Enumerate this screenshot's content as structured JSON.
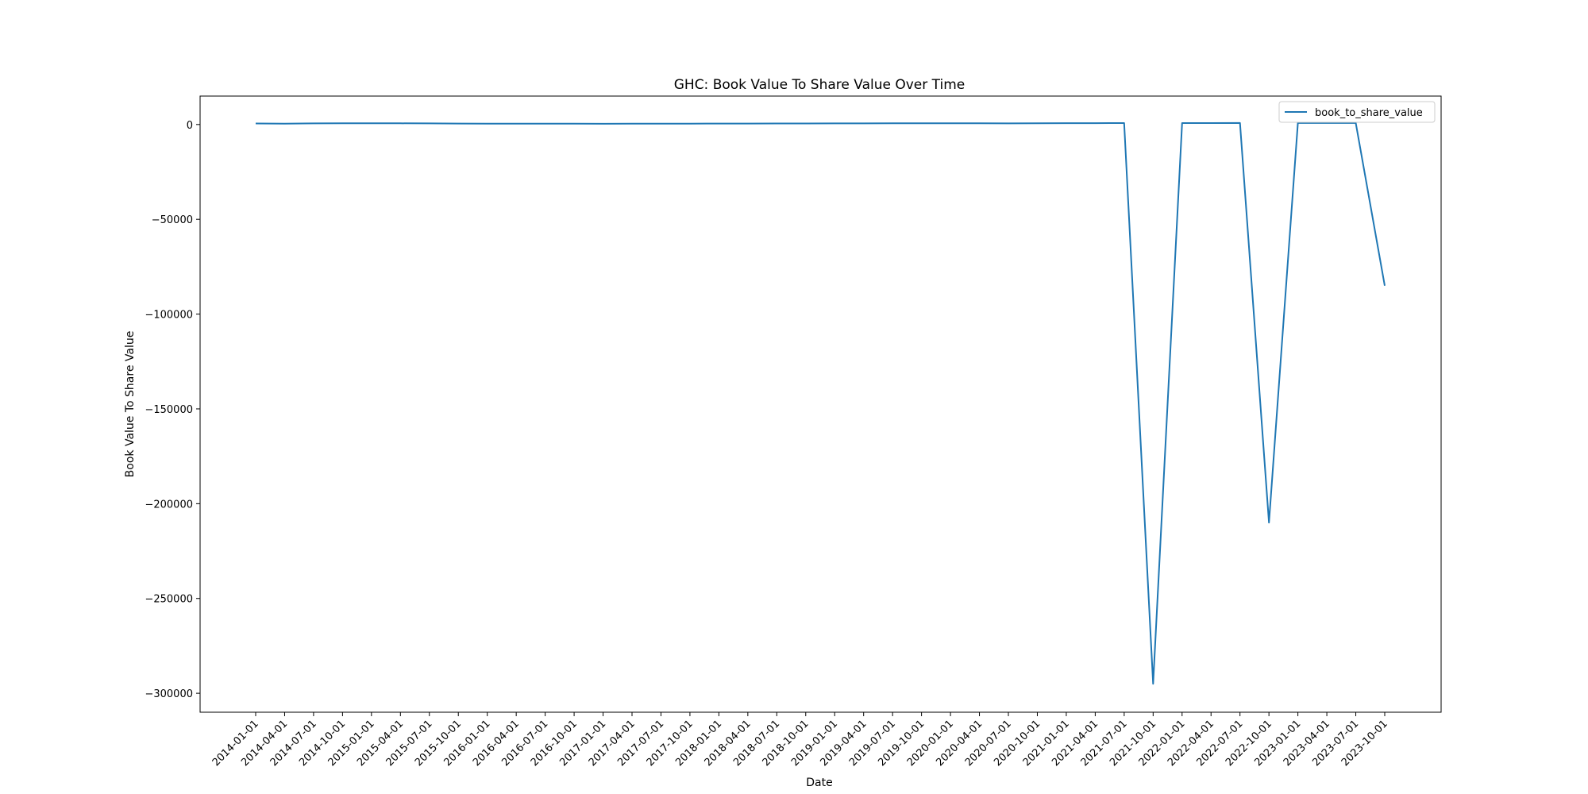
{
  "chart_data": {
    "type": "line",
    "title": "GHC: Book Value To Share Value Over Time",
    "xlabel": "Date",
    "ylabel": "Book Value To Share Value",
    "x": [
      "2014-01-01",
      "2014-04-01",
      "2014-07-01",
      "2014-10-01",
      "2015-01-01",
      "2015-04-01",
      "2015-07-01",
      "2015-10-01",
      "2016-01-01",
      "2016-04-01",
      "2016-07-01",
      "2016-10-01",
      "2017-01-01",
      "2017-04-01",
      "2017-07-01",
      "2017-10-01",
      "2018-01-01",
      "2018-04-01",
      "2018-07-01",
      "2018-10-01",
      "2019-01-01",
      "2019-04-01",
      "2019-07-01",
      "2019-10-01",
      "2020-01-01",
      "2020-04-01",
      "2020-07-01",
      "2020-10-01",
      "2021-01-01",
      "2021-04-01",
      "2021-07-01",
      "2021-10-01",
      "2022-01-01",
      "2022-04-01",
      "2022-07-01",
      "2022-10-01",
      "2023-01-01",
      "2023-04-01",
      "2023-07-01",
      "2023-10-01"
    ],
    "series": [
      {
        "name": "book_to_share_value",
        "color": "#1f77b4",
        "values": [
          550,
          450,
          600,
          650,
          650,
          620,
          580,
          500,
          480,
          450,
          450,
          420,
          400,
          420,
          450,
          480,
          500,
          520,
          540,
          560,
          580,
          600,
          620,
          650,
          650,
          620,
          600,
          650,
          700,
          720,
          750,
          -295000,
          750,
          780,
          800,
          -210000,
          800,
          820,
          850,
          -85000
        ]
      }
    ],
    "yticks": [
      0,
      -50000,
      -100000,
      -150000,
      -200000,
      -250000,
      -300000
    ],
    "ylim": [
      -310000,
      15000
    ],
    "grid": false,
    "legend": "top-right"
  }
}
